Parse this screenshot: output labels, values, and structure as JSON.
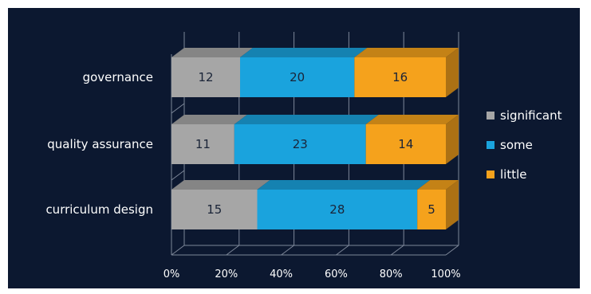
{
  "chart_data": {
    "type": "bar",
    "orientation": "horizontal",
    "stacked": "percent",
    "three_d": true,
    "categories": [
      "governance",
      "quality assurance",
      "curriculum design"
    ],
    "series": [
      {
        "name": "significant",
        "values": [
          12,
          11,
          15
        ],
        "color": "#a6a6a6"
      },
      {
        "name": "some",
        "values": [
          20,
          23,
          28
        ],
        "color": "#1aa3dd"
      },
      {
        "name": "little",
        "values": [
          16,
          14,
          5
        ],
        "color": "#f5a21c"
      }
    ],
    "x_ticks": [
      "0%",
      "20%",
      "40%",
      "60%",
      "80%",
      "100%"
    ],
    "xlim": [
      0,
      100
    ],
    "grid": true,
    "legend_position": "right",
    "background": "#0c1830"
  }
}
